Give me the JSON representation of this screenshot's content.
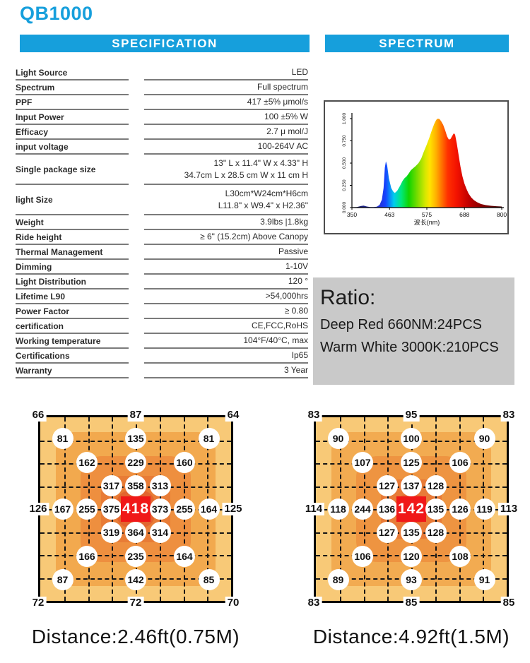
{
  "title": "QB1000",
  "colors": {
    "accent_cyan": "#169fdc",
    "table_line": "#7b7b7b",
    "ratio_bg": "#c9c9c9",
    "heat_center_red": "#f01818"
  },
  "headers": {
    "specification": "SPECIFICATION",
    "spectrum": "SPECTRUM"
  },
  "specification": {
    "rows": [
      {
        "label": "Light Source",
        "value": "LED"
      },
      {
        "label": "Spectrum",
        "value": "Full spectrum"
      },
      {
        "label": "PPF",
        "value": "417 ±5% μmol/s"
      },
      {
        "label": "Input Power",
        "value": "100 ±5% W"
      },
      {
        "label": "Efficacy",
        "value": "2.7 μ mol/J"
      },
      {
        "label": "input voltage",
        "value": "100-264V AC"
      },
      {
        "label": "Single package size",
        "value": [
          "13\" L x 11.4\" W x 4.33\" H",
          "34.7cm L x 28.5 cm W x 11 cm H"
        ]
      },
      {
        "label": "light Size",
        "value": [
          "L30cm*W24cm*H6cm",
          "L11.8\"  x W9.4\"  x H2.36\""
        ]
      },
      {
        "label": "Weight",
        "value": "3.9lbs |1.8kg"
      },
      {
        "label": "Ride height",
        "value": "≥  6\" (15.2cm) Above Canopy"
      },
      {
        "label": "Thermal Management",
        "value": "Passive"
      },
      {
        "label": "Dimming",
        "value": "1-10V"
      },
      {
        "label": "Light Distribution",
        "value": "120 °"
      },
      {
        "label": "Lifetime L90",
        "value": ">54,000hrs"
      },
      {
        "label": "Power Factor",
        "value": "≥  0.80"
      },
      {
        "label": "certification",
        "value": "CE,FCC,RoHS"
      },
      {
        "label": "Working temperature",
        "value": "104°F/40°C,  max"
      },
      {
        "label": "Certifications",
        "value": "Ip65"
      },
      {
        "label": "Warranty",
        "value": "3 Year"
      }
    ]
  },
  "ratio": {
    "title": "Ratio:",
    "lines": [
      "Deep Red 660NM:24PCS",
      "Warm White 3000K:210PCS"
    ]
  },
  "chart_data": [
    {
      "type": "area",
      "name": "led-spectrum",
      "title": "",
      "xlabel": "波长(nm)",
      "ylabel": "",
      "xlim": [
        350,
        800
      ],
      "ylim": [
        0,
        1.0
      ],
      "xticks": [
        350,
        463,
        575,
        688,
        800
      ],
      "yticks": [
        0,
        0.25,
        0.5,
        0.75,
        1.0
      ],
      "yticklabels": [
        "0.000",
        "0.250",
        "0.500",
        "0.750",
        "1.000"
      ],
      "grid": false,
      "points": [
        [
          350,
          0.004
        ],
        [
          365,
          0.006
        ],
        [
          378,
          0.018
        ],
        [
          385,
          0.022
        ],
        [
          395,
          0.012
        ],
        [
          405,
          0.006
        ],
        [
          415,
          0.006
        ],
        [
          425,
          0.01
        ],
        [
          433,
          0.03
        ],
        [
          440,
          0.09
        ],
        [
          445,
          0.22
        ],
        [
          449,
          0.45
        ],
        [
          452,
          0.52
        ],
        [
          456,
          0.47
        ],
        [
          461,
          0.33
        ],
        [
          468,
          0.22
        ],
        [
          474,
          0.18
        ],
        [
          479,
          0.165
        ],
        [
          486,
          0.19
        ],
        [
          494,
          0.24
        ],
        [
          502,
          0.3
        ],
        [
          508,
          0.33
        ],
        [
          514,
          0.35
        ],
        [
          520,
          0.38
        ],
        [
          527,
          0.42
        ],
        [
          533,
          0.44
        ],
        [
          541,
          0.465
        ],
        [
          550,
          0.5
        ],
        [
          558,
          0.55
        ],
        [
          566,
          0.63
        ],
        [
          574,
          0.7
        ],
        [
          582,
          0.78
        ],
        [
          590,
          0.87
        ],
        [
          597,
          0.94
        ],
        [
          603,
          0.985
        ],
        [
          608,
          1.0
        ],
        [
          613,
          0.995
        ],
        [
          618,
          0.97
        ],
        [
          624,
          0.93
        ],
        [
          630,
          0.87
        ],
        [
          636,
          0.8
        ],
        [
          641,
          0.765
        ],
        [
          646,
          0.77
        ],
        [
          652,
          0.81
        ],
        [
          656,
          0.835
        ],
        [
          660,
          0.82
        ],
        [
          665,
          0.72
        ],
        [
          670,
          0.6
        ],
        [
          676,
          0.46
        ],
        [
          682,
          0.35
        ],
        [
          688,
          0.27
        ],
        [
          694,
          0.21
        ],
        [
          700,
          0.16
        ],
        [
          708,
          0.115
        ],
        [
          716,
          0.085
        ],
        [
          726,
          0.06
        ],
        [
          738,
          0.04
        ],
        [
          752,
          0.028
        ],
        [
          768,
          0.02
        ],
        [
          784,
          0.015
        ],
        [
          800,
          0.012
        ]
      ],
      "gradient": [
        [
          0.0,
          "#111144"
        ],
        [
          0.19,
          "#2233dd"
        ],
        [
          0.225,
          "#1544ff"
        ],
        [
          0.28,
          "#00ccee"
        ],
        [
          0.33,
          "#00e87a"
        ],
        [
          0.38,
          "#11d400"
        ],
        [
          0.44,
          "#7fdd00"
        ],
        [
          0.49,
          "#d6e800"
        ],
        [
          0.52,
          "#ffe400"
        ],
        [
          0.56,
          "#ffb300"
        ],
        [
          0.6,
          "#ff7100"
        ],
        [
          0.64,
          "#ff3000"
        ],
        [
          0.7,
          "#f31200"
        ],
        [
          0.78,
          "#c00000"
        ],
        [
          0.88,
          "#800000"
        ],
        [
          1.0,
          "#3a0000"
        ]
      ]
    },
    {
      "type": "heatmap",
      "name": "ppfd-map-near",
      "caption": "Distance:2.46ft(0.75M)",
      "grid": [
        8,
        8
      ],
      "rings": [
        {
          "inset": 0,
          "color": "#f8c977",
          "radius": 4
        },
        {
          "inset": 8,
          "color": "#f2a94e",
          "radius": 26
        },
        {
          "inset": 21,
          "color": "#ee8f3f",
          "radius": 30
        },
        {
          "inset": 32,
          "color": "#e87c36",
          "radius": 26
        },
        {
          "inset": 40,
          "color": "#e2652f",
          "radius": 18
        }
      ],
      "points": [
        {
          "c": 0,
          "r": 0,
          "v": "66",
          "t": "plain"
        },
        {
          "c": 4,
          "r": 0,
          "v": "87",
          "t": "plain"
        },
        {
          "c": 8,
          "r": 0,
          "v": "64",
          "t": "plain"
        },
        {
          "c": 1,
          "r": 1,
          "v": "81",
          "t": "circle"
        },
        {
          "c": 4,
          "r": 1,
          "v": "135",
          "t": "circle"
        },
        {
          "c": 7,
          "r": 1,
          "v": "81",
          "t": "circle"
        },
        {
          "c": 2,
          "r": 2,
          "v": "162",
          "t": "circle"
        },
        {
          "c": 4,
          "r": 2,
          "v": "229",
          "t": "circle"
        },
        {
          "c": 6,
          "r": 2,
          "v": "160",
          "t": "circle"
        },
        {
          "c": 3,
          "r": 3,
          "v": "317",
          "t": "circle"
        },
        {
          "c": 4,
          "r": 3,
          "v": "358",
          "t": "circle"
        },
        {
          "c": 5,
          "r": 3,
          "v": "313",
          "t": "circle"
        },
        {
          "c": 0,
          "r": 4,
          "v": "126",
          "t": "plain"
        },
        {
          "c": 1,
          "r": 4,
          "v": "167",
          "t": "circle"
        },
        {
          "c": 2,
          "r": 4,
          "v": "255",
          "t": "circle"
        },
        {
          "c": 3,
          "r": 4,
          "v": "375",
          "t": "circle"
        },
        {
          "c": 4,
          "r": 4,
          "v": "418",
          "t": "center"
        },
        {
          "c": 5,
          "r": 4,
          "v": "373",
          "t": "circle"
        },
        {
          "c": 6,
          "r": 4,
          "v": "255",
          "t": "circle"
        },
        {
          "c": 7,
          "r": 4,
          "v": "164",
          "t": "circle"
        },
        {
          "c": 8,
          "r": 4,
          "v": "125",
          "t": "plain"
        },
        {
          "c": 3,
          "r": 5,
          "v": "319",
          "t": "circle"
        },
        {
          "c": 4,
          "r": 5,
          "v": "364",
          "t": "circle"
        },
        {
          "c": 5,
          "r": 5,
          "v": "314",
          "t": "circle"
        },
        {
          "c": 2,
          "r": 6,
          "v": "166",
          "t": "circle"
        },
        {
          "c": 4,
          "r": 6,
          "v": "235",
          "t": "circle"
        },
        {
          "c": 6,
          "r": 6,
          "v": "164",
          "t": "circle"
        },
        {
          "c": 1,
          "r": 7,
          "v": "87",
          "t": "circle"
        },
        {
          "c": 4,
          "r": 7,
          "v": "142",
          "t": "circle"
        },
        {
          "c": 7,
          "r": 7,
          "v": "85",
          "t": "circle"
        },
        {
          "c": 0,
          "r": 8,
          "v": "72",
          "t": "plain"
        },
        {
          "c": 4,
          "r": 8,
          "v": "72",
          "t": "plain"
        },
        {
          "c": 8,
          "r": 8,
          "v": "70",
          "t": "plain"
        }
      ]
    },
    {
      "type": "heatmap",
      "name": "ppfd-map-far",
      "caption": "Distance:4.92ft(1.5M)",
      "grid": [
        8,
        8
      ],
      "rings": [
        {
          "inset": 0,
          "color": "#f8c977",
          "radius": 4
        },
        {
          "inset": 8,
          "color": "#f2ab51",
          "radius": 26
        },
        {
          "inset": 21,
          "color": "#ee9441",
          "radius": 30
        },
        {
          "inset": 34,
          "color": "#e87b38",
          "radius": 26
        },
        {
          "inset": 42,
          "color": "#e46a33",
          "radius": 16
        }
      ],
      "points": [
        {
          "c": 0,
          "r": 0,
          "v": "83",
          "t": "plain"
        },
        {
          "c": 4,
          "r": 0,
          "v": "95",
          "t": "plain"
        },
        {
          "c": 8,
          "r": 0,
          "v": "83",
          "t": "plain"
        },
        {
          "c": 1,
          "r": 1,
          "v": "90",
          "t": "circle"
        },
        {
          "c": 4,
          "r": 1,
          "v": "100",
          "t": "circle"
        },
        {
          "c": 7,
          "r": 1,
          "v": "90",
          "t": "circle"
        },
        {
          "c": 2,
          "r": 2,
          "v": "107",
          "t": "circle"
        },
        {
          "c": 4,
          "r": 2,
          "v": "125",
          "t": "circle"
        },
        {
          "c": 6,
          "r": 2,
          "v": "106",
          "t": "circle"
        },
        {
          "c": 3,
          "r": 3,
          "v": "127",
          "t": "circle"
        },
        {
          "c": 4,
          "r": 3,
          "v": "137",
          "t": "circle"
        },
        {
          "c": 5,
          "r": 3,
          "v": "128",
          "t": "circle"
        },
        {
          "c": 0,
          "r": 4,
          "v": "114",
          "t": "plain"
        },
        {
          "c": 1,
          "r": 4,
          "v": "118",
          "t": "circle"
        },
        {
          "c": 2,
          "r": 4,
          "v": "244",
          "t": "circle"
        },
        {
          "c": 3,
          "r": 4,
          "v": "136",
          "t": "circle"
        },
        {
          "c": 4,
          "r": 4,
          "v": "142",
          "t": "center"
        },
        {
          "c": 5,
          "r": 4,
          "v": "135",
          "t": "circle"
        },
        {
          "c": 6,
          "r": 4,
          "v": "126",
          "t": "circle"
        },
        {
          "c": 7,
          "r": 4,
          "v": "119",
          "t": "circle"
        },
        {
          "c": 8,
          "r": 4,
          "v": "113",
          "t": "plain"
        },
        {
          "c": 3,
          "r": 5,
          "v": "127",
          "t": "circle"
        },
        {
          "c": 4,
          "r": 5,
          "v": "135",
          "t": "circle"
        },
        {
          "c": 5,
          "r": 5,
          "v": "128",
          "t": "circle"
        },
        {
          "c": 2,
          "r": 6,
          "v": "106",
          "t": "circle"
        },
        {
          "c": 4,
          "r": 6,
          "v": "120",
          "t": "circle"
        },
        {
          "c": 6,
          "r": 6,
          "v": "108",
          "t": "circle"
        },
        {
          "c": 1,
          "r": 7,
          "v": "89",
          "t": "circle"
        },
        {
          "c": 4,
          "r": 7,
          "v": "93",
          "t": "circle"
        },
        {
          "c": 7,
          "r": 7,
          "v": "91",
          "t": "circle"
        },
        {
          "c": 0,
          "r": 8,
          "v": "83",
          "t": "plain"
        },
        {
          "c": 4,
          "r": 8,
          "v": "85",
          "t": "plain"
        },
        {
          "c": 8,
          "r": 8,
          "v": "85",
          "t": "plain"
        }
      ]
    }
  ]
}
